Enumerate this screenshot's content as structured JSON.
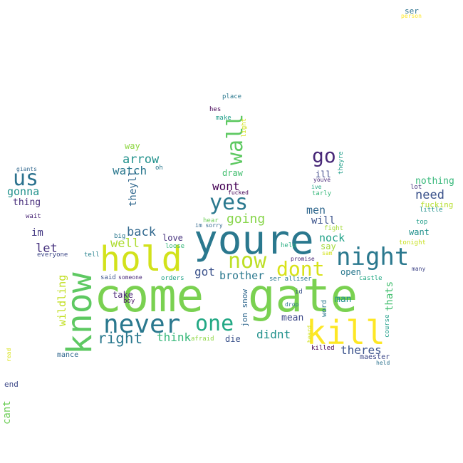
{
  "words": [
    {
      "text": "come",
      "color": "#7ad151"
    },
    {
      "text": "gate",
      "color": "#7ad151"
    },
    {
      "text": "youre",
      "color": "#2a788e"
    },
    {
      "text": "hold",
      "color": "#d2e21b"
    },
    {
      "text": "know",
      "color": "#5ec962"
    },
    {
      "text": "kill",
      "color": "#fde725"
    },
    {
      "text": "never",
      "color": "#2a788e"
    },
    {
      "text": "night",
      "color": "#2a788e"
    },
    {
      "text": "one",
      "color": "#22a884"
    },
    {
      "text": "now",
      "color": "#bddf26"
    },
    {
      "text": "dont",
      "color": "#d8e219"
    },
    {
      "text": "yes",
      "color": "#2a788e"
    },
    {
      "text": "wall",
      "color": "#5ec962"
    },
    {
      "text": "go",
      "color": "#482878"
    },
    {
      "text": "us",
      "color": "#2c728e"
    },
    {
      "text": "right",
      "color": "#2a788e"
    },
    {
      "text": "going",
      "color": "#86d549"
    },
    {
      "text": "arrow",
      "color": "#21918c"
    },
    {
      "text": "watch",
      "color": "#2a788e"
    },
    {
      "text": "back",
      "color": "#31688e"
    },
    {
      "text": "well",
      "color": "#addc30"
    },
    {
      "text": "wont",
      "color": "#440154"
    },
    {
      "text": "let",
      "color": "#46327e"
    },
    {
      "text": "got",
      "color": "#3b528b"
    },
    {
      "text": "brother",
      "color": "#2a788e"
    },
    {
      "text": "men",
      "color": "#31688e"
    },
    {
      "text": "will",
      "color": "#3b528b"
    },
    {
      "text": "nock",
      "color": "#1fa187"
    },
    {
      "text": "think",
      "color": "#35b779"
    },
    {
      "text": "didnt",
      "color": "#21918c"
    },
    {
      "text": "theres",
      "color": "#3b528b"
    },
    {
      "text": "gonna",
      "color": "#21918c"
    },
    {
      "text": "need",
      "color": "#3b528b"
    },
    {
      "text": "nothing",
      "color": "#35b779"
    },
    {
      "text": "im",
      "color": "#443983"
    },
    {
      "text": "thing",
      "color": "#472d7b"
    },
    {
      "text": "theyll",
      "color": "#31688e"
    },
    {
      "text": "wildling",
      "color": "#c2df23"
    },
    {
      "text": "thats",
      "color": "#44bf70"
    },
    {
      "text": "want",
      "color": "#21918c"
    },
    {
      "text": "fucking",
      "color": "#b5de2b"
    },
    {
      "text": "say",
      "color": "#a2da37"
    },
    {
      "text": "open",
      "color": "#2a788e"
    },
    {
      "text": "man",
      "color": "#21918c"
    },
    {
      "text": "mean",
      "color": "#3e4989"
    },
    {
      "text": "draw",
      "color": "#44bf70"
    },
    {
      "text": "love",
      "color": "#46327e"
    },
    {
      "text": "take",
      "color": "#482475"
    },
    {
      "text": "way",
      "color": "#8fd744"
    },
    {
      "text": "die",
      "color": "#3b528b"
    },
    {
      "text": "jon snow",
      "color": "#31688e"
    },
    {
      "text": "ill",
      "color": "#3e4989"
    },
    {
      "text": "cant",
      "color": "#6ece58"
    },
    {
      "text": "end",
      "color": "#3e4989"
    },
    {
      "text": "mance",
      "color": "#31688e"
    },
    {
      "text": "maester",
      "color": "#3e4989"
    },
    {
      "text": "word",
      "color": "#2a788e"
    },
    {
      "text": "course",
      "color": "#1f9e89"
    },
    {
      "text": "ser",
      "color": "#2c728e"
    },
    {
      "text": "person",
      "color": "#fde725"
    },
    {
      "text": "place",
      "color": "#2a788e"
    },
    {
      "text": "hes",
      "color": "#440154"
    },
    {
      "text": "make",
      "color": "#1f9e89"
    },
    {
      "text": "light",
      "color": "#d2e21b"
    },
    {
      "text": "theyre",
      "color": "#1f9e89"
    },
    {
      "text": "youve",
      "color": "#482878"
    },
    {
      "text": "ive",
      "color": "#22a884"
    },
    {
      "text": "tarly",
      "color": "#35b779"
    },
    {
      "text": "fight",
      "color": "#a5db36"
    },
    {
      "text": "sam",
      "color": "#d2e21b"
    },
    {
      "text": "promise",
      "color": "#482878"
    },
    {
      "text": "help",
      "color": "#27ad81"
    },
    {
      "text": "castle",
      "color": "#22a884"
    },
    {
      "text": "many",
      "color": "#404688"
    },
    {
      "text": "tonight",
      "color": "#c8e020"
    },
    {
      "text": "top",
      "color": "#1f9e89"
    },
    {
      "text": "little",
      "color": "#21918c"
    },
    {
      "text": "lot",
      "color": "#46327e"
    },
    {
      "text": "giants",
      "color": "#31688e"
    },
    {
      "text": "oh",
      "color": "#2a788e"
    },
    {
      "text": "wait",
      "color": "#482475"
    },
    {
      "text": "fucked",
      "color": "#440154"
    },
    {
      "text": "hear",
      "color": "#6ece58"
    },
    {
      "text": "im sorry",
      "color": "#31688e"
    },
    {
      "text": "big",
      "color": "#2a788e"
    },
    {
      "text": "loose",
      "color": "#35b779"
    },
    {
      "text": "everyone",
      "color": "#3e4989"
    },
    {
      "text": "tell",
      "color": "#26828e"
    },
    {
      "text": "said",
      "color": "#3b528b"
    },
    {
      "text": "someone",
      "color": "#482878"
    },
    {
      "text": "boy",
      "color": "#471063"
    },
    {
      "text": "orders",
      "color": "#1fa187"
    },
    {
      "text": "ser alliser",
      "color": "#2a788e"
    },
    {
      "text": "id",
      "color": "#3b528b"
    },
    {
      "text": "drop",
      "color": "#2a788e"
    },
    {
      "text": "heard",
      "color": "#d2e21b"
    },
    {
      "text": "killed",
      "color": "#440154"
    },
    {
      "text": "afraid",
      "color": "#8fd744"
    },
    {
      "text": "held",
      "color": "#2c728e"
    },
    {
      "text": "read",
      "color": "#d8e219"
    }
  ]
}
